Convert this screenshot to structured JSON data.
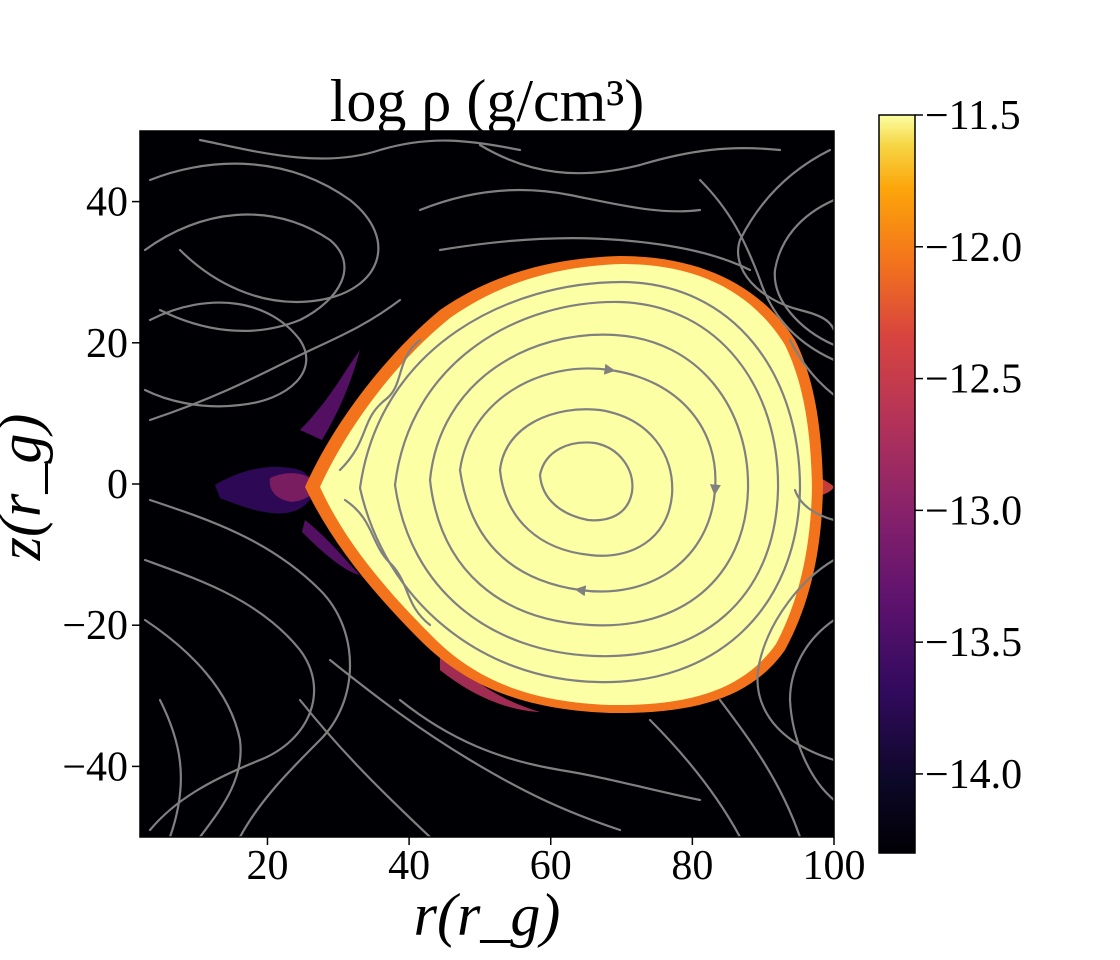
{
  "chart_data": {
    "type": "heatmap",
    "title": "log ρ (g/cm³)",
    "xlabel": "r(r_g)",
    "ylabel": "z(r_g)",
    "xlim": [
      2,
      100
    ],
    "ylim": [
      -50,
      50
    ],
    "xticks": [
      20,
      40,
      60,
      80,
      100
    ],
    "xtick_labels": [
      "20",
      "40",
      "60",
      "80",
      "100"
    ],
    "yticks": [
      40,
      20,
      0,
      -20,
      -40
    ],
    "ytick_labels": [
      "40",
      "20",
      "0",
      "−20",
      "−40"
    ],
    "colorbar": {
      "colormap": "inferno",
      "range": [
        -14.3,
        -11.5
      ],
      "ticks": [
        -11.5,
        -12.0,
        -12.5,
        -13.0,
        -13.5,
        -14.0
      ],
      "tick_labels": [
        "−11.5",
        "−12.0",
        "−12.5",
        "−13.0",
        "−13.5",
        "−14.0"
      ]
    },
    "overlay": "streamlines",
    "streamline_color": "#808080",
    "background_color": "#000004",
    "high_density_color": "#fcffa4",
    "grid": false
  }
}
